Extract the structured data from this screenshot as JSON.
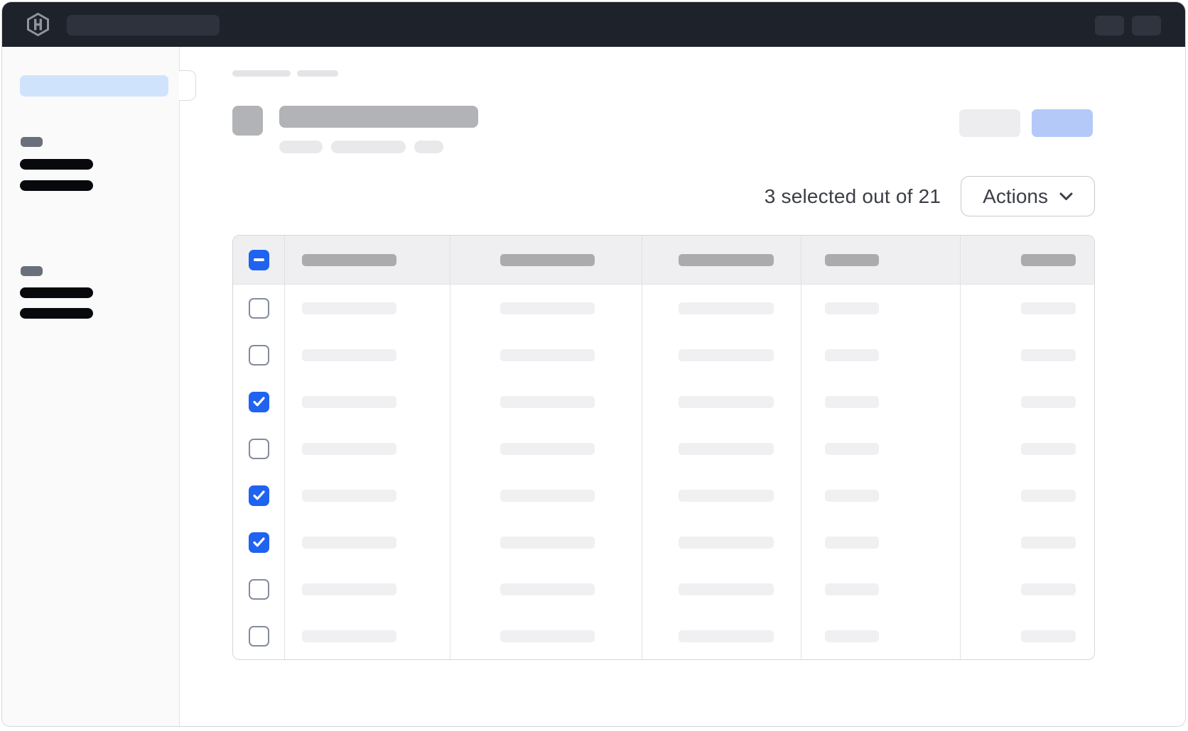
{
  "colors": {
    "topbar_bg": "#1e222a",
    "accent_blue": "#1f63f0",
    "selected_blue": "#cfe3fc",
    "skeleton_button_blue": "#b4c9f8"
  },
  "topbar": {
    "logo_icon": "hashicorp-logo",
    "search_skeleton": true,
    "right_button_count": 2
  },
  "sidebar": {
    "selected_item_skeleton": true,
    "toggle_handle": true,
    "sections": [
      {
        "label_skeleton": true,
        "item_count": 2
      },
      {
        "label_skeleton": true,
        "item_count": 2
      }
    ]
  },
  "main": {
    "breadcrumb_segment_count": 2,
    "page_header": {
      "icon_skeleton": true,
      "title_skeleton": true,
      "badge_count": 3,
      "secondary_button_skeleton": true,
      "primary_button_skeleton": true
    },
    "selection_summary": {
      "text": "3 selected out of 21",
      "selected_count": 3,
      "total_count": 21
    },
    "actions_button": {
      "label": "Actions",
      "icon": "chevron-down"
    },
    "table": {
      "select_all_state": "indeterminate",
      "column_count": 5,
      "rows": [
        {
          "selected": false
        },
        {
          "selected": false
        },
        {
          "selected": true
        },
        {
          "selected": false
        },
        {
          "selected": true
        },
        {
          "selected": true
        },
        {
          "selected": false
        },
        {
          "selected": false
        }
      ]
    }
  }
}
